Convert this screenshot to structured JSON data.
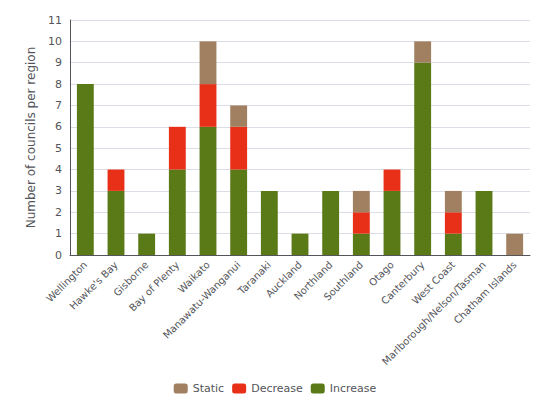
{
  "chart_data": {
    "type": "bar",
    "categories": [
      "Wellington",
      "Hawke's Bay",
      "Gisborne",
      "Bay of Plenty",
      "Waikato",
      "Manawatu-Wanganui",
      "Taranaki",
      "Auckland",
      "Northland",
      "Southland",
      "Otago",
      "Canterbury",
      "West Coast",
      "Marlborough/Nelson/Tasman",
      "Chatham Islands"
    ],
    "series": [
      {
        "name": "Increase",
        "color": "#5a7a18",
        "values": [
          8,
          3,
          1,
          4,
          6,
          4,
          3,
          1,
          3,
          1,
          3,
          9,
          1,
          3,
          0
        ]
      },
      {
        "name": "Decrease",
        "color": "#e83018",
        "values": [
          0,
          1,
          0,
          2,
          2,
          2,
          0,
          0,
          0,
          1,
          1,
          0,
          1,
          0,
          0
        ]
      },
      {
        "name": "Static",
        "color": "#a08060",
        "values": [
          0,
          0,
          0,
          0,
          2,
          1,
          0,
          0,
          0,
          1,
          0,
          1,
          1,
          0,
          1
        ]
      }
    ],
    "ylabel": "Number of councils per region",
    "ylim": [
      0,
      11
    ],
    "yticks": [
      0,
      1,
      2,
      3,
      4,
      5,
      6,
      7,
      8,
      9,
      10,
      11
    ],
    "stacked": true,
    "grid": true,
    "legend": "bottom"
  }
}
